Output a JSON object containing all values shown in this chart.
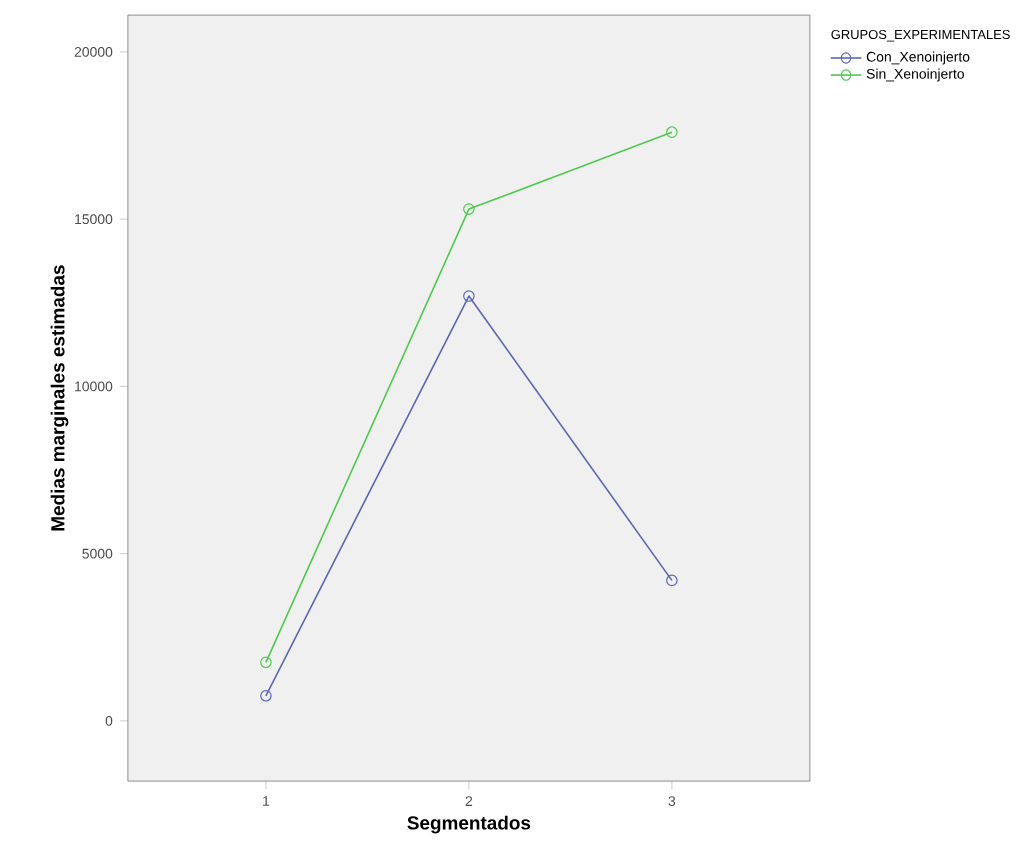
{
  "chart_data": {
    "type": "line",
    "xlabel": "Segmentados",
    "ylabel": "Medias marginales estimadas",
    "legend_title": "GRUPOS_EXPERIMENTALES",
    "categories": [
      "1",
      "2",
      "3"
    ],
    "series": [
      {
        "name": "Con_Xenoinjerto",
        "color": "#5b67b3",
        "values": [
          750,
          12700,
          4200
        ]
      },
      {
        "name": "Sin_Xenoinjerto",
        "color": "#4fc94f",
        "values": [
          1750,
          15300,
          17600
        ]
      }
    ],
    "ylim": [
      -1800,
      21100
    ],
    "yticks": [
      0,
      5000,
      10000,
      15000,
      20000
    ],
    "grid": false,
    "legend": "top right",
    "marker": "circle",
    "line_style": "solid"
  }
}
